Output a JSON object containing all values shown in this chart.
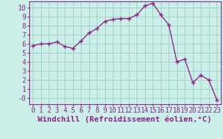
{
  "x": [
    0,
    1,
    2,
    3,
    4,
    5,
    6,
    7,
    8,
    9,
    10,
    11,
    12,
    13,
    14,
    15,
    16,
    17,
    18,
    19,
    20,
    21,
    22,
    23
  ],
  "y": [
    5.8,
    6.0,
    6.0,
    6.2,
    5.7,
    5.5,
    6.3,
    7.2,
    7.7,
    8.5,
    8.7,
    8.8,
    8.8,
    9.2,
    10.2,
    10.5,
    9.2,
    8.1,
    4.0,
    4.3,
    1.7,
    2.5,
    2.0,
    -0.2
  ],
  "line_color": "#882288",
  "marker": "+",
  "marker_size": 4,
  "linewidth": 1.0,
  "bg_color": "#cceee8",
  "plot_bg_color": "#cceee8",
  "grid_color": "#99ccbb",
  "xlabel": "Windchill (Refroidissement éolien,°C)",
  "xlabel_fontsize": 8,
  "tick_fontsize": 7,
  "xlim": [
    -0.5,
    23.5
  ],
  "ylim": [
    -0.7,
    10.7
  ],
  "yticks": [
    0,
    1,
    2,
    3,
    4,
    5,
    6,
    7,
    8,
    9,
    10
  ],
  "xticks": [
    0,
    1,
    2,
    3,
    4,
    5,
    6,
    7,
    8,
    9,
    10,
    11,
    12,
    13,
    14,
    15,
    16,
    17,
    18,
    19,
    20,
    21,
    22,
    23
  ]
}
